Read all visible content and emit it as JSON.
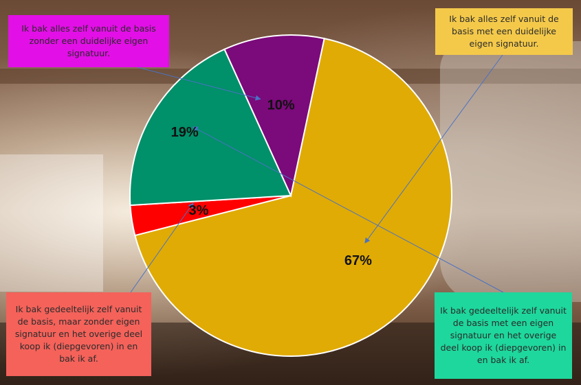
{
  "chart_data": {
    "type": "pie",
    "slices": [
      {
        "label": "Ik bak alles zelf vanuit de basis met een duidelijke eigen signatuur.",
        "value": 67,
        "display": "67%",
        "color": "#e0ab05",
        "callout_color": "#f4c94a"
      },
      {
        "label": "Ik bak gedeeltelijk zelf vanuit de basis, maar zonder  eigen signatuur en het overige deel koop ik (diepgevoren) in en bak ik af.",
        "value": 3,
        "display": "3%",
        "color": "#ff0000",
        "callout_color": "#f4625a"
      },
      {
        "label": "Ik bak gedeeltelijk zelf vanuit de basis met een eigen signatuur en het overige deel koop ik (diepgevoren) in en bak ik af.",
        "value": 19,
        "display": "19%",
        "color": "#00906a",
        "callout_color": "#1ed79c"
      },
      {
        "label": "Ik bak alles zelf vanuit de basis zonder  een duidelijke eigen signatuur.",
        "value": 10,
        "display": "10%",
        "color": "#7b0a7b",
        "callout_color": "#e20fe6"
      }
    ],
    "legend": "callout-boxes"
  }
}
